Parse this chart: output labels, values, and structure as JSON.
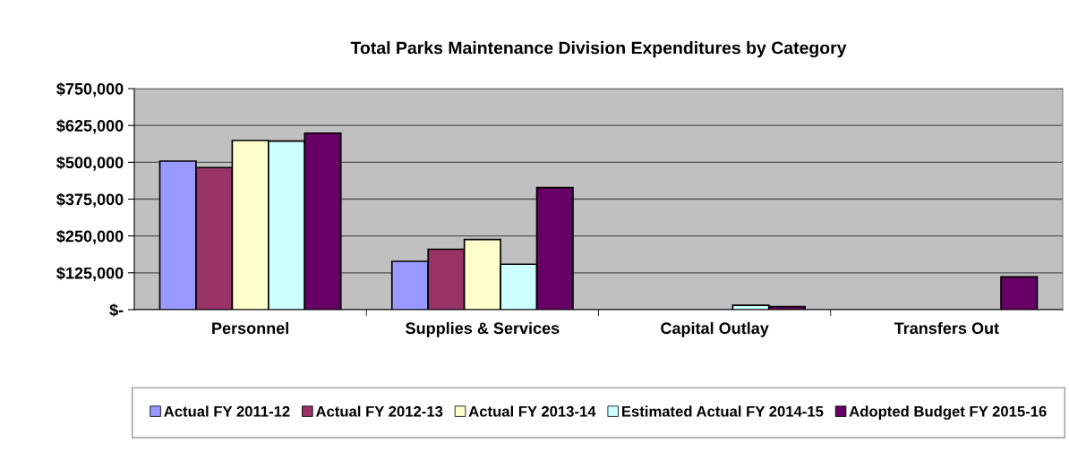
{
  "chart_data": {
    "type": "bar",
    "title": "Total Parks Maintenance Division Expenditures by Category",
    "categories": [
      "Personnel",
      "Supplies & Services",
      "Capital Outlay",
      "Transfers Out"
    ],
    "series": [
      {
        "name": "Actual FY 2011-12",
        "color": "#9999ff",
        "values": [
          504000,
          164000,
          0,
          0
        ]
      },
      {
        "name": "Actual FY 2012-13",
        "color": "#993366",
        "values": [
          482000,
          205000,
          0,
          0
        ]
      },
      {
        "name": "Actual FY 2013-14",
        "color": "#ffffcc",
        "values": [
          574000,
          238000,
          0,
          0
        ]
      },
      {
        "name": "Estimated Actual FY 2014-15",
        "color": "#ccffff",
        "values": [
          572000,
          154000,
          15000,
          0
        ]
      },
      {
        "name": "Adopted Budget FY 2015-16",
        "color": "#660066",
        "values": [
          599000,
          414000,
          10000,
          111000
        ]
      }
    ],
    "ylim": [
      0,
      750000
    ],
    "yticks": [
      {
        "value": 0,
        "label": "$-"
      },
      {
        "value": 125000,
        "label": "$125,000"
      },
      {
        "value": 250000,
        "label": "$250,000"
      },
      {
        "value": 375000,
        "label": "$375,000"
      },
      {
        "value": 500000,
        "label": "$500,000"
      },
      {
        "value": 625000,
        "label": "$625,000"
      },
      {
        "value": 750000,
        "label": "$750,000"
      }
    ],
    "grid": "y",
    "legend": "bottom"
  }
}
